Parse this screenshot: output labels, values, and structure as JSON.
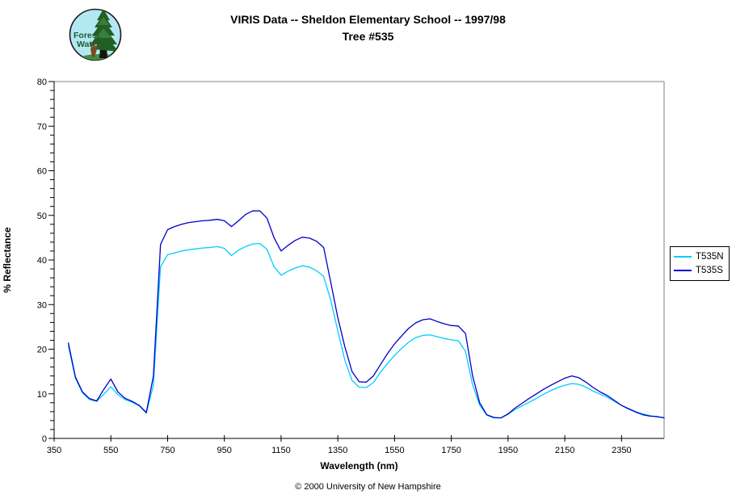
{
  "header": {
    "title_line1": "VIRIS Data -- Sheldon Elementary School -- 1997/98",
    "title_line2": "Tree #535"
  },
  "logo": {
    "line1": "Forest",
    "line2": "Watch"
  },
  "footer": {
    "copyright": "© 2000 University of New Hampshire"
  },
  "chart_data": {
    "type": "line",
    "title": "VIRIS Data -- Sheldon Elementary School -- 1997/98  Tree #535",
    "xlabel": "Wavelength (nm)",
    "ylabel": "% Reflectance",
    "xlim": [
      350,
      2500
    ],
    "ylim": [
      0,
      80
    ],
    "x_ticks": [
      350,
      550,
      750,
      950,
      1150,
      1350,
      1550,
      1750,
      1950,
      2150,
      2350
    ],
    "y_tick_major_step": 10,
    "y_tick_minor_step": 2,
    "grid": false,
    "legend_position": "right",
    "axis_color": "#000000",
    "border_color": "#808080",
    "x": [
      400,
      425,
      450,
      475,
      500,
      525,
      550,
      575,
      600,
      625,
      650,
      675,
      700,
      725,
      750,
      775,
      800,
      825,
      850,
      875,
      900,
      925,
      950,
      975,
      1000,
      1025,
      1050,
      1075,
      1100,
      1125,
      1150,
      1175,
      1200,
      1225,
      1250,
      1275,
      1300,
      1325,
      1350,
      1375,
      1400,
      1425,
      1450,
      1475,
      1500,
      1525,
      1550,
      1575,
      1600,
      1625,
      1650,
      1675,
      1700,
      1725,
      1750,
      1775,
      1800,
      1825,
      1850,
      1875,
      1900,
      1925,
      1950,
      1975,
      2000,
      2025,
      2050,
      2075,
      2100,
      2125,
      2150,
      2175,
      2200,
      2225,
      2250,
      2275,
      2300,
      2325,
      2350,
      2375,
      2400,
      2425,
      2450,
      2475,
      2500
    ],
    "series": [
      {
        "name": "T535N",
        "color": "#00CCFF",
        "values": [
          20.8,
          13.5,
          10.2,
          8.7,
          8.3,
          9.9,
          11.6,
          9.8,
          8.7,
          8.1,
          7.3,
          5.7,
          12.0,
          38.5,
          41.2,
          41.6,
          42.0,
          42.3,
          42.5,
          42.7,
          42.8,
          43.0,
          42.6,
          41.0,
          42.2,
          43.0,
          43.6,
          43.7,
          42.4,
          38.5,
          36.6,
          37.5,
          38.2,
          38.7,
          38.4,
          37.6,
          36.3,
          31.0,
          24.0,
          17.5,
          13.0,
          11.5,
          11.4,
          12.5,
          14.8,
          16.8,
          18.6,
          20.2,
          21.6,
          22.6,
          23.1,
          23.2,
          22.8,
          22.4,
          22.1,
          21.9,
          19.5,
          12.0,
          7.5,
          5.2,
          4.6,
          4.6,
          5.4,
          6.5,
          7.3,
          8.1,
          9.0,
          9.9,
          10.7,
          11.4,
          11.9,
          12.3,
          12.1,
          11.5,
          10.6,
          9.9,
          9.2,
          8.3,
          7.4,
          6.7,
          6.0,
          5.5,
          5.1,
          4.8,
          4.7
        ]
      },
      {
        "name": "T535S",
        "color": "#0000CC",
        "values": [
          21.4,
          13.8,
          10.4,
          8.9,
          8.4,
          11.0,
          13.3,
          10.4,
          9.0,
          8.3,
          7.4,
          5.8,
          14.0,
          43.5,
          46.8,
          47.5,
          48.0,
          48.4,
          48.6,
          48.8,
          48.9,
          49.1,
          48.8,
          47.5,
          48.8,
          50.2,
          51.0,
          51.0,
          49.4,
          45.0,
          42.0,
          43.3,
          44.4,
          45.1,
          44.9,
          44.2,
          42.8,
          35.0,
          27.0,
          20.5,
          15.0,
          12.7,
          12.6,
          14.0,
          16.5,
          19.0,
          21.2,
          23.0,
          24.7,
          25.9,
          26.6,
          26.8,
          26.2,
          25.7,
          25.3,
          25.2,
          23.5,
          14.0,
          8.0,
          5.3,
          4.7,
          4.6,
          5.5,
          6.8,
          7.9,
          9.0,
          10.0,
          11.0,
          11.9,
          12.7,
          13.5,
          14.0,
          13.6,
          12.6,
          11.4,
          10.4,
          9.6,
          8.5,
          7.4,
          6.6,
          5.9,
          5.3,
          5.0,
          4.9,
          4.6
        ]
      }
    ]
  }
}
